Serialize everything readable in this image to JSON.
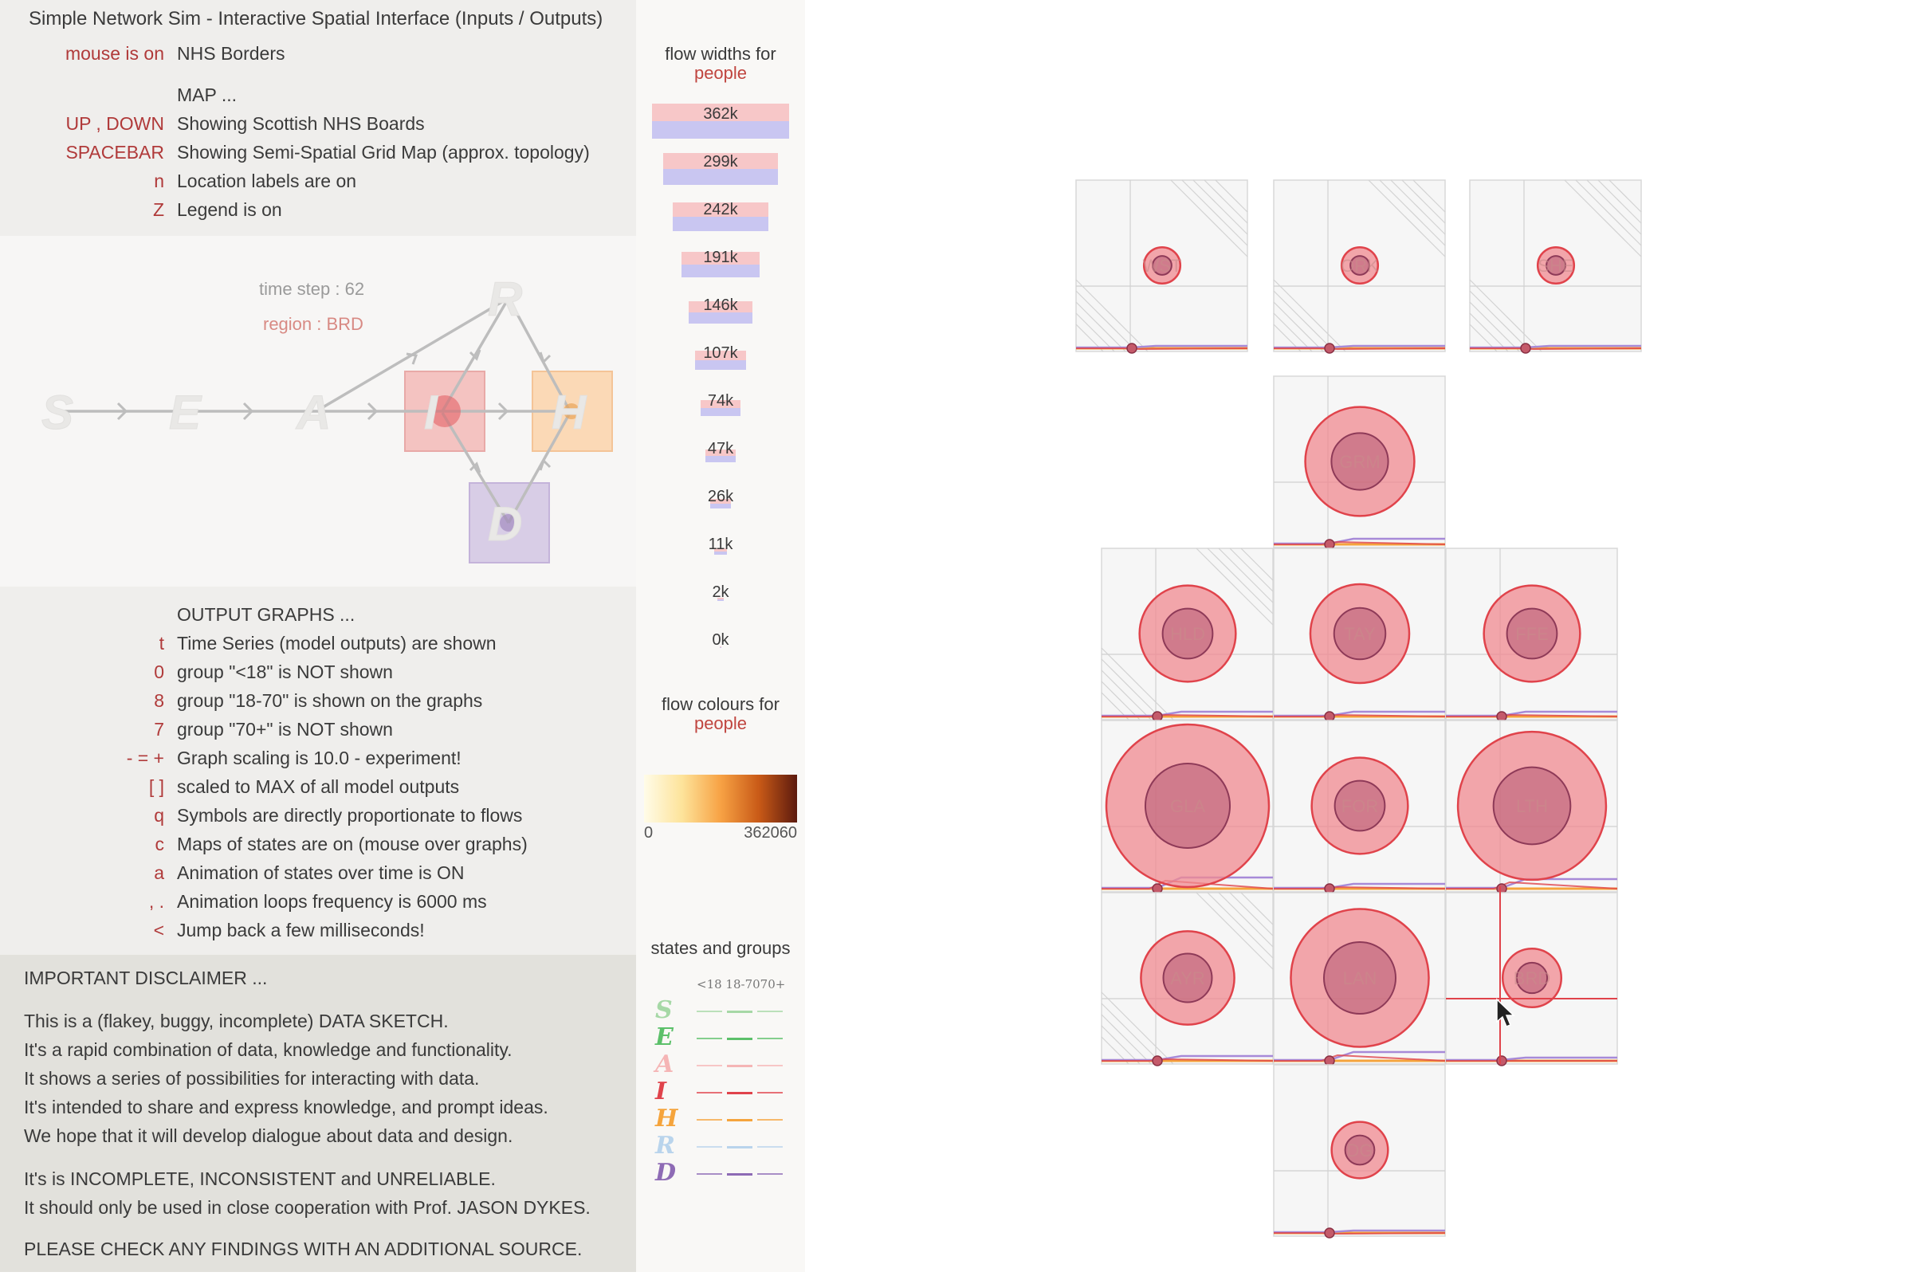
{
  "app": {
    "title": "Simple Network Sim - Interactive Spatial Interface (Inputs / Outputs)"
  },
  "mouse": {
    "key": "mouse is on",
    "value": "NHS Borders"
  },
  "map_section": {
    "heading": "MAP ...",
    "rows": [
      {
        "key": "UP , DOWN",
        "value": "Showing Scottish NHS Boards"
      },
      {
        "key": "SPACEBAR",
        "value": "Showing Semi-Spatial Grid Map (approx. topology)"
      },
      {
        "key": "n",
        "value": "Location labels are on"
      },
      {
        "key": "Z",
        "value": "Legend is on"
      }
    ]
  },
  "network": {
    "time_step": "time step : 62",
    "region": "region : BRD",
    "states": [
      "S",
      "E",
      "A",
      "I",
      "H",
      "R",
      "D"
    ]
  },
  "output_section": {
    "heading": "OUTPUT GRAPHS ...",
    "rows": [
      {
        "key": "t",
        "value": "Time Series (model outputs) are shown"
      },
      {
        "key": "0",
        "value": "group \"<18\" is NOT shown"
      },
      {
        "key": "8",
        "value": "group \"18-70\" is shown on the graphs"
      },
      {
        "key": "7",
        "value": "group \"70+\" is NOT shown"
      },
      {
        "key": "- = +",
        "value": "Graph scaling is 10.0 - experiment!"
      },
      {
        "key": "[ ]",
        "value": "scaled to MAX of all model outputs"
      },
      {
        "key": "q",
        "value": "Symbols are directly proportionate to flows"
      },
      {
        "key": "c",
        "value": "Maps of states are on (mouse over graphs)"
      },
      {
        "key": "a",
        "value": "Animation of states over time is ON"
      },
      {
        "key": ", .",
        "value": "Animation loops frequency is 6000 ms"
      },
      {
        "key": "<",
        "value": "Jump back a few milliseconds!"
      }
    ]
  },
  "disclaimer": {
    "heading": "IMPORTANT DISCLAIMER ...",
    "para1": [
      "This is a (flakey, buggy, incomplete) DATA SKETCH.",
      "It's a rapid combination of data, knowledge and functionality.",
      "It shows a series of possibilities for interacting with data.",
      "It's intended to share and express knowledge, and prompt ideas.",
      "We hope that it will develop dialogue about data and design."
    ],
    "para2": [
      "It's is INCOMPLETE, INCONSISTENT and UNRELIABLE.",
      "It should only be used in close cooperation with Prof. JASON DYKES."
    ],
    "para3": "PLEASE CHECK ANY FINDINGS WITH AN ADDITIONAL SOURCE."
  },
  "flow_widths": {
    "heading": "flow widths for",
    "subject": "people",
    "items": [
      {
        "label": "362k",
        "value": 362
      },
      {
        "label": "299k",
        "value": 299
      },
      {
        "label": "242k",
        "value": 242
      },
      {
        "label": "191k",
        "value": 191
      },
      {
        "label": "146k",
        "value": 146
      },
      {
        "label": "107k",
        "value": 107
      },
      {
        "label": "74k",
        "value": 74
      },
      {
        "label": "47k",
        "value": 47
      },
      {
        "label": "26k",
        "value": 26
      },
      {
        "label": "11k",
        "value": 11
      },
      {
        "label": "2k",
        "value": 2
      },
      {
        "label": "0k",
        "value": 0
      }
    ]
  },
  "flow_colours": {
    "heading": "flow colours for",
    "subject": "people",
    "min_label": "0",
    "max_label": "362060"
  },
  "states_groups": {
    "heading": "states and groups",
    "group_labels": "<18 18-7070+",
    "rows": [
      {
        "letter": "S",
        "color": "#a6d8a6"
      },
      {
        "letter": "E",
        "color": "#5cc06a"
      },
      {
        "letter": "A",
        "color": "#f5b5b5"
      },
      {
        "letter": "I",
        "color": "#e0434b"
      },
      {
        "letter": "H",
        "color": "#f5a43c"
      },
      {
        "letter": "R",
        "color": "#b9d4ec"
      },
      {
        "letter": "D",
        "color": "#8e6bb5"
      }
    ]
  },
  "map": {
    "boards": [
      {
        "code": "WST",
        "size": 0.05
      },
      {
        "code": "ORK",
        "size": 0.05
      },
      {
        "code": "SHE",
        "size": 0.05
      },
      {
        "code": "GRM",
        "size": 0.45
      },
      {
        "code": "HLD",
        "size": 0.35
      },
      {
        "code": "TAY",
        "size": 0.37
      },
      {
        "code": "FFE",
        "size": 0.35
      },
      {
        "code": "GLA",
        "size": 1.0
      },
      {
        "code": "FOR",
        "size": 0.35
      },
      {
        "code": "LTH",
        "size": 0.83
      },
      {
        "code": "AYR",
        "size": 0.33
      },
      {
        "code": "LAN",
        "size": 0.72
      },
      {
        "code": "BRD",
        "size": 0.13
      },
      {
        "code": "DG",
        "size": 0.12
      }
    ]
  },
  "colors": {
    "key_red": "#b03a3a",
    "symbol_fill": "#f08a90",
    "symbol_stroke": "#e0434b",
    "inner_fill": "#b55a72",
    "line_orange": "#f5a43c",
    "line_purple": "#a78ad8"
  }
}
